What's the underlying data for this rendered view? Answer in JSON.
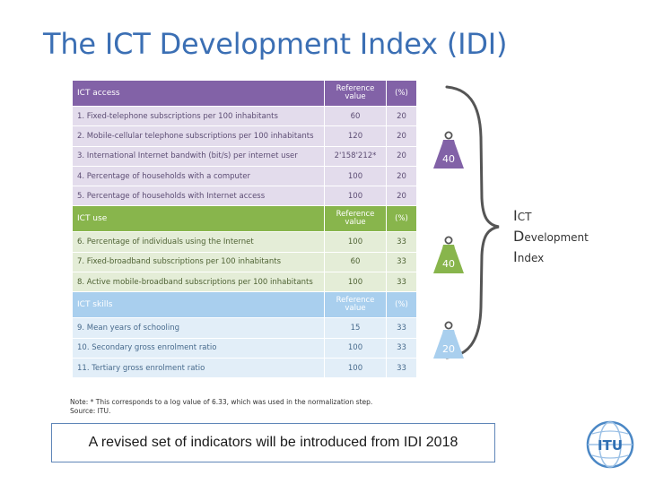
{
  "slide": {
    "title": "The ICT Development Index (IDI)"
  },
  "table": {
    "groups": [
      {
        "key": "access",
        "header": {
          "label": "ICT access",
          "ref_line1": "Reference",
          "ref_line2": "value",
          "pct": "(%)"
        },
        "rows": [
          {
            "label": "1. Fixed-telephone subscriptions per 100 inhabitants",
            "ref": "60",
            "pct": "20"
          },
          {
            "label": "2. Mobile-cellular telephone subscriptions per 100 inhabitants",
            "ref": "120",
            "pct": "20"
          },
          {
            "label": "3. International Internet bandwith (bit/s) per internet user",
            "ref": "2'158'212*",
            "pct": "20"
          },
          {
            "label": "4. Percentage of households with a computer",
            "ref": "100",
            "pct": "20"
          },
          {
            "label": "5. Percentage of households with Internet access",
            "ref": "100",
            "pct": "20"
          }
        ]
      },
      {
        "key": "use",
        "header": {
          "label": "ICT use",
          "ref_line1": "Reference",
          "ref_line2": "value",
          "pct": "(%)"
        },
        "rows": [
          {
            "label": "6. Percentage of individuals using the Internet",
            "ref": "100",
            "pct": "33"
          },
          {
            "label": "7. Fixed-broadband subscriptions per 100 inhabitants",
            "ref": "60",
            "pct": "33"
          },
          {
            "label": "8. Active mobile-broadband subscriptions per 100 inhabitants",
            "ref": "100",
            "pct": "33"
          }
        ]
      },
      {
        "key": "skills",
        "header": {
          "label": "ICT skills",
          "ref_line1": "Reference",
          "ref_line2": "value",
          "pct": "(%)"
        },
        "rows": [
          {
            "label": "9.   Mean years of schooling",
            "ref": "15",
            "pct": "33"
          },
          {
            "label": "10. Secondary gross enrolment ratio",
            "ref": "100",
            "pct": "33"
          },
          {
            "label": "11. Tertiary gross enrolment ratio",
            "ref": "100",
            "pct": "33"
          }
        ]
      }
    ]
  },
  "note": {
    "line1": "Note: * This corresponds to a log value of 6.33, which was used in the normalization step.",
    "line2": "Source: ITU."
  },
  "weights": [
    {
      "value": "40",
      "color": "#8262a7"
    },
    {
      "value": "40",
      "color": "#88b54c"
    },
    {
      "value": "20",
      "color": "#a9cfee"
    }
  ],
  "index_label": [
    {
      "initial": "I",
      "rest": "CT"
    },
    {
      "initial": "D",
      "rest": "evelopment"
    },
    {
      "initial": "I",
      "rest": "ndex"
    }
  ],
  "caption": "A revised set of indicators will be introduced from IDI 2018",
  "logo": {
    "text": "ITU",
    "icon": "itu-logo-icon"
  }
}
